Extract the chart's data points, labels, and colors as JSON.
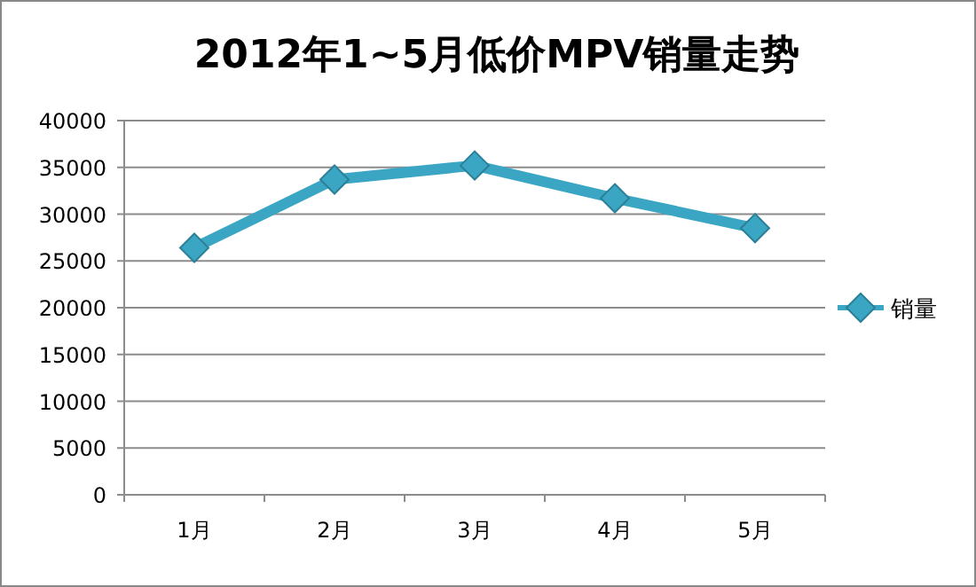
{
  "chart_data": {
    "type": "line",
    "title": "2012年1~5月低价MPV销量走势",
    "categories": [
      "1月",
      "2月",
      "3月",
      "4月",
      "5月"
    ],
    "series": [
      {
        "name": "销量",
        "color": "#3aa6c4",
        "values": [
          26400,
          33700,
          35200,
          31700,
          28500
        ]
      }
    ],
    "ylim": [
      0,
      40000
    ],
    "yticks": [
      0,
      5000,
      10000,
      15000,
      20000,
      25000,
      30000,
      35000,
      40000
    ],
    "grid": "y",
    "legend": "right",
    "marker": "diamond",
    "line_style": "solid"
  }
}
